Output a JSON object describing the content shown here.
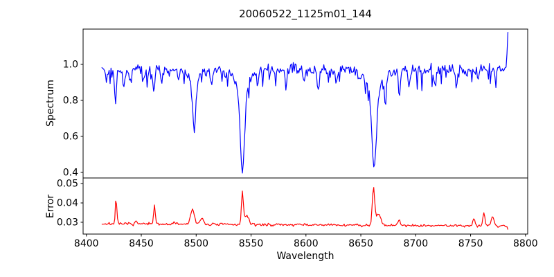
{
  "figure_title": "20060522_1125m01_144",
  "chart_data": [
    {
      "type": "line",
      "title": "20060522_1125m01_144",
      "ylabel": "Spectrum",
      "series_name": "spectrum",
      "line_color": "#0000ff",
      "xlim": [
        8397,
        8802
      ],
      "ylim": [
        0.369,
        1.196
      ],
      "yticks": [
        0.4,
        0.6,
        0.8,
        1.0
      ],
      "ytick_labels": [
        "0.4",
        "0.6",
        "0.8",
        "1.0"
      ],
      "grid": false,
      "x_range": [
        8414,
        8784
      ],
      "n_points": 440,
      "continuum": 0.97,
      "noise_sigma": 0.014,
      "noise_dip_prob": 0.12,
      "noise_dip_max": 0.09,
      "seed": 42,
      "absorption_lines": [
        {
          "center": 8418.5,
          "depth": 0.05,
          "sigma": 0.7
        },
        {
          "center": 8426.5,
          "depth": 0.19,
          "sigma": 0.9
        },
        {
          "center": 8434.0,
          "depth": 0.11,
          "sigma": 0.8
        },
        {
          "center": 8439.5,
          "depth": 0.06,
          "sigma": 0.7
        },
        {
          "center": 8452.0,
          "depth": 0.07,
          "sigma": 0.8
        },
        {
          "center": 8461.5,
          "depth": 0.14,
          "sigma": 0.9
        },
        {
          "center": 8468.5,
          "depth": 0.08,
          "sigma": 0.8
        },
        {
          "center": 8484.0,
          "depth": 0.05,
          "sigma": 0.7
        },
        {
          "center": 8498.2,
          "depth": 0.35,
          "sigma": 1.3
        },
        {
          "center": 8514.0,
          "depth": 0.1,
          "sigma": 0.9
        },
        {
          "center": 8527.0,
          "depth": 0.05,
          "sigma": 0.7
        },
        {
          "center": 8542.1,
          "depth": 0.57,
          "sigma": 1.8
        },
        {
          "center": 8556.0,
          "depth": 0.09,
          "sigma": 0.9
        },
        {
          "center": 8572.0,
          "depth": 0.05,
          "sigma": 0.7
        },
        {
          "center": 8582.0,
          "depth": 0.07,
          "sigma": 0.8
        },
        {
          "center": 8598.0,
          "depth": 0.07,
          "sigma": 0.8
        },
        {
          "center": 8611.0,
          "depth": 0.1,
          "sigma": 0.9
        },
        {
          "center": 8628.0,
          "depth": 0.06,
          "sigma": 0.7
        },
        {
          "center": 8648.0,
          "depth": 0.05,
          "sigma": 0.7
        },
        {
          "center": 8662.1,
          "depth": 0.545,
          "sigma": 2.0
        },
        {
          "center": 8672.5,
          "depth": 0.17,
          "sigma": 0.9
        },
        {
          "center": 8685.0,
          "depth": 0.15,
          "sigma": 0.9
        },
        {
          "center": 8694.0,
          "depth": 0.1,
          "sigma": 0.8
        },
        {
          "center": 8717.0,
          "depth": 0.08,
          "sigma": 0.8
        },
        {
          "center": 8737.0,
          "depth": 0.09,
          "sigma": 0.9
        },
        {
          "center": 8757.0,
          "depth": 0.06,
          "sigma": 0.8
        }
      ],
      "end_spike": {
        "x": 8784,
        "value": 1.18
      },
      "observed_minima": [
        {
          "x": 8498,
          "y": 0.62
        },
        {
          "x": 8542,
          "y": 0.4
        },
        {
          "x": 8662,
          "y": 0.43
        }
      ]
    },
    {
      "type": "line",
      "ylabel": "Error",
      "xlabel": "Wavelength",
      "series_name": "error",
      "line_color": "#ff0000",
      "xlim": [
        8397,
        8802
      ],
      "ylim": [
        0.0239,
        0.0529
      ],
      "yticks": [
        0.03,
        0.04,
        0.05
      ],
      "ytick_labels": [
        "0.03",
        "0.04",
        "0.05"
      ],
      "xticks": [
        8400,
        8450,
        8500,
        8550,
        8600,
        8650,
        8700,
        8750,
        8800
      ],
      "xtick_labels": [
        "8400",
        "8450",
        "8500",
        "8550",
        "8600",
        "8650",
        "8700",
        "8750",
        "8800"
      ],
      "grid": false,
      "x_range": [
        8414,
        8784
      ],
      "n_points": 440,
      "baseline_start": 0.0292,
      "baseline_end": 0.0281,
      "noise_sigma": 0.00035,
      "seed": 7,
      "peaks": [
        {
          "center": 8427.0,
          "amp": 0.0128,
          "sigma": 0.7
        },
        {
          "center": 8445.0,
          "amp": 0.0015,
          "sigma": 0.9
        },
        {
          "center": 8462.0,
          "amp": 0.0102,
          "sigma": 0.7
        },
        {
          "center": 8480.0,
          "amp": 0.0012,
          "sigma": 1.0
        },
        {
          "center": 8496.5,
          "amp": 0.0075,
          "sigma": 1.7
        },
        {
          "center": 8505.0,
          "amp": 0.0032,
          "sigma": 1.6
        },
        {
          "center": 8542.1,
          "amp": 0.016,
          "sigma": 0.9
        },
        {
          "center": 8546.0,
          "amp": 0.0045,
          "sigma": 2.0
        },
        {
          "center": 8661.5,
          "amp": 0.019,
          "sigma": 1.1
        },
        {
          "center": 8666.0,
          "amp": 0.0058,
          "sigma": 2.2
        },
        {
          "center": 8685.0,
          "amp": 0.0028,
          "sigma": 1.0
        },
        {
          "center": 8753.0,
          "amp": 0.0042,
          "sigma": 1.0
        },
        {
          "center": 8762.0,
          "amp": 0.0068,
          "sigma": 1.0
        },
        {
          "center": 8770.0,
          "amp": 0.005,
          "sigma": 1.1
        }
      ],
      "end_drop": {
        "x": 8784,
        "value": 0.0262
      },
      "observed_peaks": [
        {
          "x": 8427,
          "y": 0.042
        },
        {
          "x": 8462,
          "y": 0.039
        },
        {
          "x": 8497,
          "y": 0.038
        },
        {
          "x": 8542,
          "y": 0.045
        },
        {
          "x": 8662,
          "y": 0.049
        },
        {
          "x": 8762,
          "y": 0.036
        }
      ]
    }
  ],
  "colors": {
    "spectrum_line": "#0000ff",
    "error_line": "#ff0000",
    "axes": "#000000",
    "background": "#ffffff"
  }
}
